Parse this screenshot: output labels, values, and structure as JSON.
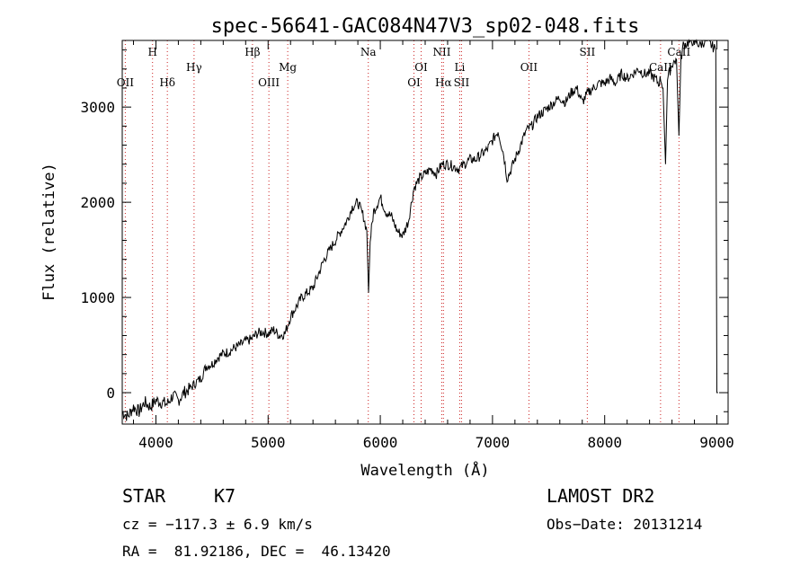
{
  "chart_data": {
    "type": "line",
    "title": "spec-56641-GAC084N47V3_sp02-048.fits",
    "xlabel": "Wavelength (Å)",
    "ylabel": "Flux (relative)",
    "xlim": [
      3700,
      9100
    ],
    "ylim": [
      -330,
      3700
    ],
    "x_ticks": [
      4000,
      5000,
      6000,
      7000,
      8000,
      9000
    ],
    "y_ticks": [
      0,
      1000,
      2000,
      3000
    ],
    "grid": false,
    "series": [
      {
        "color": "#000000",
        "x": [
          3700,
          3750,
          3800,
          3850,
          3900,
          3950,
          4000,
          4050,
          4100,
          4150,
          4200,
          4250,
          4300,
          4350,
          4400,
          4450,
          4500,
          4550,
          4600,
          4650,
          4700,
          4750,
          4800,
          4850,
          4900,
          4950,
          5000,
          5050,
          5100,
          5150,
          5200,
          5250,
          5300,
          5350,
          5400,
          5450,
          5500,
          5550,
          5600,
          5650,
          5700,
          5750,
          5800,
          5850,
          5880,
          5895,
          5910,
          5940,
          6000,
          6050,
          6100,
          6150,
          6200,
          6250,
          6300,
          6350,
          6400,
          6450,
          6500,
          6550,
          6600,
          6650,
          6700,
          6750,
          6800,
          6850,
          6900,
          6950,
          7000,
          7050,
          7100,
          7130,
          7150,
          7200,
          7250,
          7300,
          7350,
          7400,
          7450,
          7500,
          7550,
          7600,
          7650,
          7700,
          7750,
          7800,
          7850,
          7900,
          7950,
          8000,
          8050,
          8100,
          8150,
          8200,
          8250,
          8300,
          8350,
          8400,
          8450,
          8480,
          8500,
          8520,
          8542,
          8560,
          8600,
          8640,
          8662,
          8680,
          8700,
          8750,
          8800,
          8850,
          8900,
          8950,
          8990,
          9000,
          9010
        ],
        "y": [
          -200,
          -250,
          -150,
          -200,
          -100,
          -150,
          -80,
          -100,
          -120,
          -30,
          -80,
          0,
          40,
          100,
          150,
          280,
          300,
          370,
          410,
          430,
          470,
          500,
          540,
          560,
          620,
          640,
          620,
          660,
          600,
          620,
          800,
          900,
          1000,
          1050,
          1100,
          1250,
          1400,
          1500,
          1600,
          1700,
          1800,
          1950,
          2000,
          1850,
          1700,
          1050,
          1600,
          1900,
          2050,
          1900,
          1850,
          1700,
          1650,
          1800,
          2150,
          2250,
          2300,
          2350,
          2300,
          2400,
          2400,
          2380,
          2350,
          2400,
          2450,
          2450,
          2500,
          2550,
          2650,
          2750,
          2500,
          2250,
          2300,
          2450,
          2600,
          2750,
          2800,
          2900,
          2950,
          3000,
          3050,
          3100,
          3050,
          3150,
          3200,
          3050,
          3150,
          3200,
          3250,
          3250,
          3300,
          3250,
          3350,
          3300,
          3350,
          3400,
          3350,
          3350,
          3300,
          3250,
          3300,
          3200,
          2400,
          3300,
          3450,
          3500,
          2700,
          3500,
          3650,
          3680,
          3700,
          3650,
          3700,
          3650,
          3600,
          0,
          0
        ]
      }
    ],
    "lines": [
      {
        "label": "OII",
        "x": 3727,
        "row": 3
      },
      {
        "label": "H",
        "x": 3970,
        "row": 1
      },
      {
        "label": "Hδ",
        "x": 4102,
        "row": 3
      },
      {
        "label": "Hγ",
        "x": 4340,
        "row": 2
      },
      {
        "label": "Hβ",
        "x": 4861,
        "row": 1
      },
      {
        "label": "OIII",
        "x": 5007,
        "row": 3
      },
      {
        "label": "Mg",
        "x": 5175,
        "row": 2
      },
      {
        "label": "Na",
        "x": 5893,
        "row": 1
      },
      {
        "label": "OI",
        "x": 6300,
        "row": 3
      },
      {
        "label": "OI",
        "x": 6364,
        "row": 2
      },
      {
        "label": "NII",
        "x": 6548,
        "row": 1
      },
      {
        "label": "Hα",
        "x": 6563,
        "row": 3
      },
      {
        "label": "Li",
        "x": 6708,
        "row": 2
      },
      {
        "label": "SII",
        "x": 6724,
        "row": 3
      },
      {
        "label": "OII",
        "x": 7325,
        "row": 2
      },
      {
        "label": "SII",
        "x": 7845,
        "row": 1
      },
      {
        "label": "CaII",
        "x": 8498,
        "row": 2
      },
      {
        "label": "CaII",
        "x": 8662,
        "row": 1
      }
    ]
  },
  "info": {
    "object_class": "STAR",
    "subclass": "K7",
    "survey": "LAMOST DR2",
    "cz": "cz = −117.3 ± 6.9 km/s",
    "obs_date": "Obs−Date: 20131214",
    "radec": "RA =  81.92186, DEC =  46.13420"
  },
  "colors": {
    "spectrum": "#000000",
    "line_marker": "#cc2222",
    "axes": "#000000"
  }
}
